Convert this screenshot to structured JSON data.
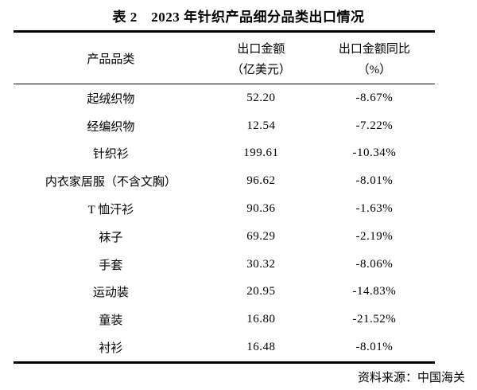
{
  "page": {
    "background_color": "#ffffff",
    "text_color": "#000000"
  },
  "table": {
    "title": "表 2　2023 年针织产品细分品类出口情况",
    "source_note": "资料来源：中国海关",
    "columns": [
      {
        "line1": "产品品类",
        "line2": ""
      },
      {
        "line1": "出口金额",
        "line2": "（亿美元）"
      },
      {
        "line1": "出口金额同比",
        "line2": "（%）"
      }
    ],
    "rows": [
      {
        "category": "起绒织物",
        "export_value": "52.20",
        "yoy": "-8.67%"
      },
      {
        "category": "经编织物",
        "export_value": "12.54",
        "yoy": "-7.22%"
      },
      {
        "category": "针织衫",
        "export_value": "199.61",
        "yoy": "-10.34%"
      },
      {
        "category": "内衣家居服（不含文胸）",
        "export_value": "96.62",
        "yoy": "-8.01%"
      },
      {
        "category": "T 恤汗衫",
        "export_value": "90.36",
        "yoy": "-1.63%"
      },
      {
        "category": "袜子",
        "export_value": "69.29",
        "yoy": "-2.19%"
      },
      {
        "category": "手套",
        "export_value": "30.32",
        "yoy": "-8.06%"
      },
      {
        "category": "运动装",
        "export_value": "20.95",
        "yoy": "-14.83%"
      },
      {
        "category": "童装",
        "export_value": "16.80",
        "yoy": "-21.52%"
      },
      {
        "category": "衬衫",
        "export_value": "16.48",
        "yoy": "-8.01%"
      }
    ]
  }
}
